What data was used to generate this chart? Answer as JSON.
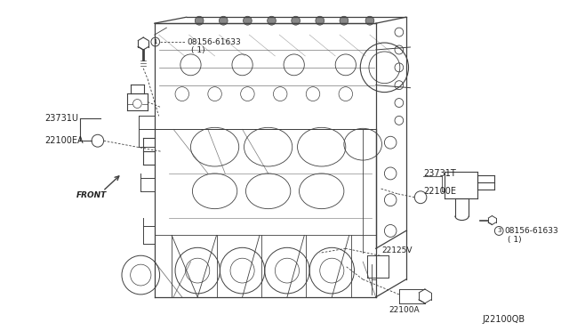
{
  "bg_color": "#ffffff",
  "line_color": "#404040",
  "text_color": "#222222",
  "figsize": [
    6.4,
    3.72
  ],
  "dpi": 100,
  "labels": {
    "bolt_top_num": "1",
    "bolt_top_part": "08156-61633",
    "bolt_top_qty": "( 1)",
    "sensor_23731U": "23731U",
    "sensor_22100EA": "22100EA",
    "sensor_23731T": "23731T",
    "sensor_22100E": "22100E",
    "bolt_right_num": "3",
    "bolt_right_part": "08156-61633",
    "bolt_right_qty": "( 1)",
    "sensor_22125V": "22125V",
    "sensor_22100A": "22100A",
    "diagram_ref": "J22100QB",
    "front_label": "FRONT"
  }
}
